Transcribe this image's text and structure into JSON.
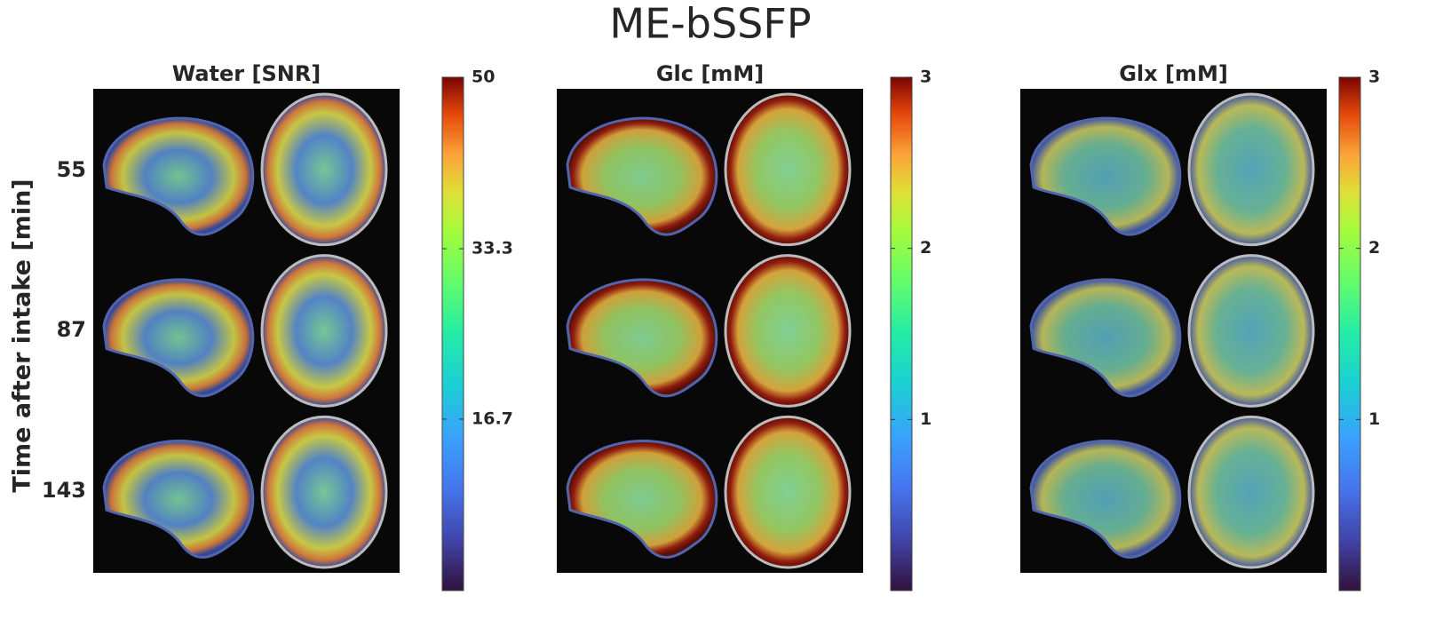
{
  "title": "ME-bSSFP",
  "y_label": "Time after intake [min]",
  "rows": [
    "55",
    "87",
    "143"
  ],
  "panels": [
    {
      "title": "Water [SNR]",
      "clim": [
        0,
        50
      ],
      "cticks": [
        16.7,
        33.3,
        50
      ]
    },
    {
      "title": "Glc [mM]",
      "clim": [
        0,
        3
      ],
      "cticks": [
        1,
        2,
        3
      ]
    },
    {
      "title": "Glx [mM]",
      "clim": [
        0,
        3
      ],
      "cticks": [
        1,
        2,
        3
      ]
    }
  ]
}
